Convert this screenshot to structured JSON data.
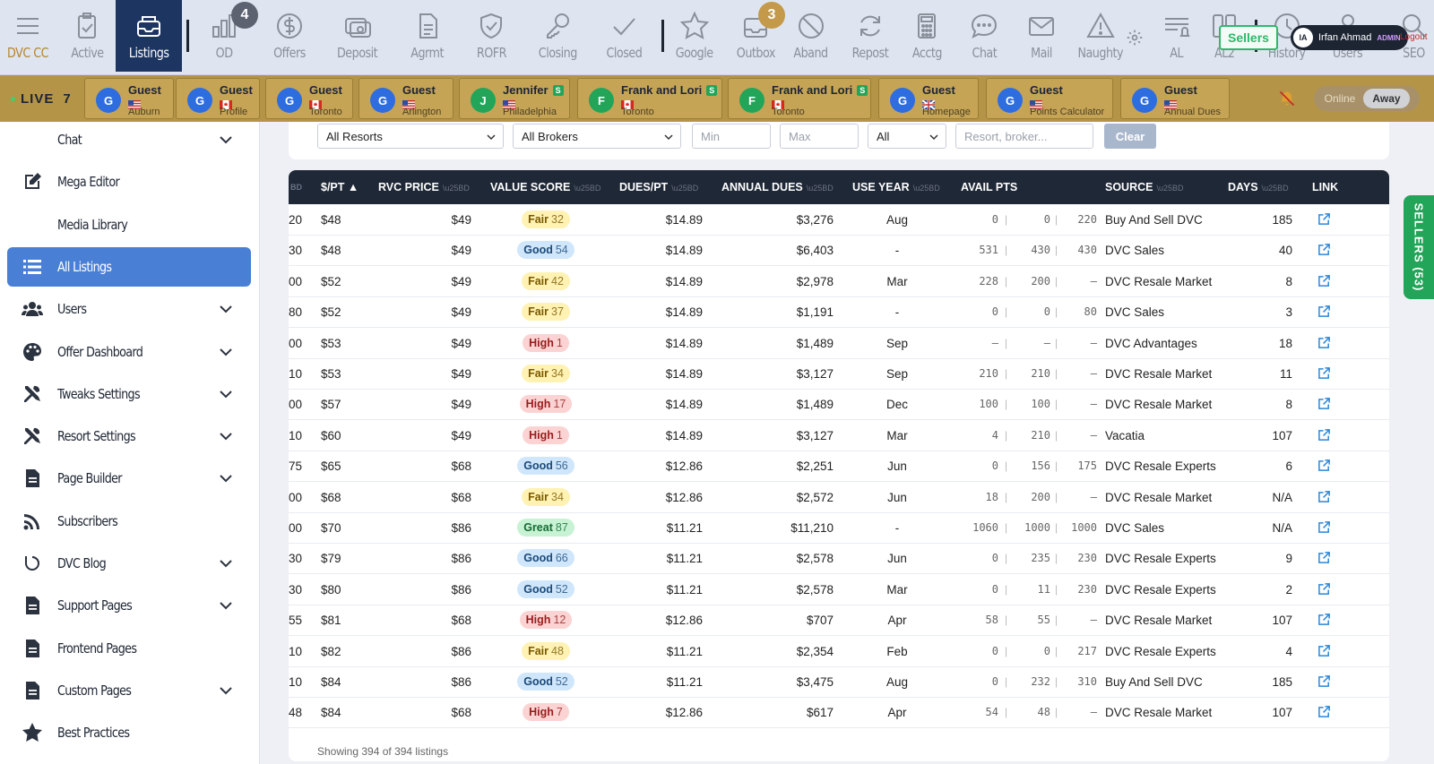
{
  "nav": {
    "items": [
      {
        "label": "DVC CC",
        "icon": "menu-icon"
      },
      {
        "label": "Active",
        "icon": "clipboard-check-icon"
      },
      {
        "label": "Listings",
        "icon": "inbox-icon"
      },
      {
        "label": "OD",
        "icon": "bar-chart-icon",
        "badge": "4"
      },
      {
        "label": "Offers",
        "icon": "dollar-icon"
      },
      {
        "label": "Deposit",
        "icon": "deposit-icon"
      },
      {
        "label": "Agrmt",
        "icon": "document-icon"
      },
      {
        "label": "ROFR",
        "icon": "shield-check-icon"
      },
      {
        "label": "Closing",
        "icon": "key-icon"
      },
      {
        "label": "Closed",
        "icon": "check-icon"
      },
      {
        "label": "Google",
        "icon": "star-icon"
      },
      {
        "label": "Outbox",
        "icon": "outbox-icon",
        "badge": "3"
      },
      {
        "label": "Aband",
        "icon": "ban-icon"
      },
      {
        "label": "Repost",
        "icon": "refresh-icon"
      },
      {
        "label": "Acctg",
        "icon": "calculator-icon"
      },
      {
        "label": "Chat",
        "icon": "chat-icon"
      },
      {
        "label": "Mail",
        "icon": "mail-icon"
      },
      {
        "label": "Naughty",
        "icon": "warning-icon"
      },
      {
        "label": "AL",
        "icon": "list-bell-icon"
      },
      {
        "label": "AL2",
        "icon": "columns-icon"
      },
      {
        "label": "History",
        "icon": "clock-icon"
      },
      {
        "label": "Users",
        "icon": "user-icon"
      },
      {
        "label": "SEO",
        "icon": "seo-icon"
      }
    ],
    "sellers_label": "Sellers",
    "user_initials": "IA",
    "user_name": "Irfan Ahmad",
    "user_role": "ADMIN",
    "logout": "Logout"
  },
  "live": {
    "label": "LIVE",
    "count": "7",
    "visitors": [
      {
        "initial": "G",
        "name": "Guest",
        "flag": "us",
        "location": "Auburn"
      },
      {
        "initial": "G",
        "name": "Guest",
        "flag": "ca",
        "location": "Profile"
      },
      {
        "initial": "G",
        "name": "Guest",
        "flag": "ca",
        "location": "Toronto"
      },
      {
        "initial": "G",
        "name": "Guest",
        "flag": "us",
        "location": "Arlington"
      },
      {
        "initial": "J",
        "name": "Jennifer",
        "badge": "S",
        "flag": "us",
        "location": "Philadelphia"
      },
      {
        "initial": "F",
        "name": "Frank and Lori",
        "badge": "S",
        "flag": "ca",
        "location": "Toronto"
      },
      {
        "initial": "F",
        "name": "Frank and Lori",
        "badge": "S",
        "flag": "ca",
        "location": "Toronto"
      },
      {
        "initial": "G",
        "name": "Guest",
        "flag": "gb",
        "location": "Homepage"
      },
      {
        "initial": "G",
        "name": "Guest",
        "flag": "us",
        "location": "Points Calculator"
      },
      {
        "initial": "G",
        "name": "Guest",
        "flag": "us",
        "location": "Annual Dues"
      }
    ],
    "status_online": "Online",
    "status_away": "Away"
  },
  "sidebar": {
    "items": [
      {
        "label": "Chat",
        "icon": "none",
        "chevron": true
      },
      {
        "label": "Mega Editor",
        "icon": "edit-icon",
        "chevron": false
      },
      {
        "label": "Media Library",
        "icon": "none",
        "chevron": false
      },
      {
        "label": "All Listings",
        "icon": "list-icon",
        "chevron": false,
        "active": true
      },
      {
        "label": "Users",
        "icon": "users-icon",
        "chevron": true
      },
      {
        "label": "Offer Dashboard",
        "icon": "palette-icon",
        "chevron": true
      },
      {
        "label": "Tweaks Settings",
        "icon": "tools-icon",
        "chevron": true
      },
      {
        "label": "Resort Settings",
        "icon": "tools-icon",
        "chevron": true
      },
      {
        "label": "Page Builder",
        "icon": "file-icon",
        "chevron": true
      },
      {
        "label": "Subscribers",
        "icon": "rss-icon",
        "chevron": false
      },
      {
        "label": "DVC Blog",
        "icon": "blog-icon",
        "chevron": true
      },
      {
        "label": "Support Pages",
        "icon": "file-icon",
        "chevron": true
      },
      {
        "label": "Frontend Pages",
        "icon": "file-icon",
        "chevron": false
      },
      {
        "label": "Custom Pages",
        "icon": "file-icon",
        "chevron": true
      },
      {
        "label": "Best Practices",
        "icon": "star-icon",
        "chevron": false
      }
    ]
  },
  "filters": {
    "resort": "All Resorts",
    "broker": "All Brokers",
    "min_placeholder": "Min",
    "max_placeholder": "Max",
    "all": "All",
    "search_placeholder": "Resort, broker...",
    "clear": "Clear"
  },
  "table": {
    "headers": {
      "cut": "BD",
      "pt": "$/PT ▲",
      "rvc": "RVC PRICE",
      "value": "VALUE SCORE",
      "duespt": "DUES/PT",
      "annual": "ANNUAL DUES",
      "useyear": "USE YEAR",
      "avail": "AVAIL PTS",
      "source": "SOURCE",
      "days": "DAYS",
      "link": "LINK"
    },
    "sort_glyph": "\\u25BD",
    "rows": [
      {
        "cut": "20",
        "pt": "$48",
        "rvc": "$49",
        "vs_label": "Fair",
        "vs_num": "32",
        "vs_kind": "fair",
        "duespt": "$14.89",
        "annual": "$3,276",
        "useyear": "Aug",
        "p1": "0",
        "p2": "0",
        "p3": "220",
        "source": "Buy And Sell DVC",
        "days": "185"
      },
      {
        "cut": "30",
        "pt": "$48",
        "rvc": "$49",
        "vs_label": "Good",
        "vs_num": "54",
        "vs_kind": "good",
        "duespt": "$14.89",
        "annual": "$6,403",
        "useyear": "-",
        "p1": "531",
        "p2": "430",
        "p3": "430",
        "source": "DVC Sales",
        "days": "40"
      },
      {
        "cut": "00",
        "pt": "$52",
        "rvc": "$49",
        "vs_label": "Fair",
        "vs_num": "42",
        "vs_kind": "fair",
        "duespt": "$14.89",
        "annual": "$2,978",
        "useyear": "Mar",
        "p1": "228",
        "p2": "200",
        "p3": "–",
        "source": "DVC Resale Market",
        "days": "8"
      },
      {
        "cut": "80",
        "pt": "$52",
        "rvc": "$49",
        "vs_label": "Fair",
        "vs_num": "37",
        "vs_kind": "fair",
        "duespt": "$14.89",
        "annual": "$1,191",
        "useyear": "-",
        "p1": "0",
        "p2": "0",
        "p3": "80",
        "source": "DVC Sales",
        "days": "3"
      },
      {
        "cut": "00",
        "pt": "$53",
        "rvc": "$49",
        "vs_label": "High",
        "vs_num": "1",
        "vs_kind": "high",
        "duespt": "$14.89",
        "annual": "$1,489",
        "useyear": "Sep",
        "p1": "–",
        "p2": "–",
        "p3": "–",
        "source": "DVC Advantages",
        "days": "18"
      },
      {
        "cut": "10",
        "pt": "$53",
        "rvc": "$49",
        "vs_label": "Fair",
        "vs_num": "34",
        "vs_kind": "fair",
        "duespt": "$14.89",
        "annual": "$3,127",
        "useyear": "Sep",
        "p1": "210",
        "p2": "210",
        "p3": "–",
        "source": "DVC Resale Market",
        "days": "11"
      },
      {
        "cut": "00",
        "pt": "$57",
        "rvc": "$49",
        "vs_label": "High",
        "vs_num": "17",
        "vs_kind": "high",
        "duespt": "$14.89",
        "annual": "$1,489",
        "useyear": "Dec",
        "p1": "100",
        "p2": "100",
        "p3": "–",
        "source": "DVC Resale Market",
        "days": "8"
      },
      {
        "cut": "10",
        "pt": "$60",
        "rvc": "$49",
        "vs_label": "High",
        "vs_num": "1",
        "vs_kind": "high",
        "duespt": "$14.89",
        "annual": "$3,127",
        "useyear": "Mar",
        "p1": "4",
        "p2": "210",
        "p3": "–",
        "source": "Vacatia",
        "days": "107"
      },
      {
        "cut": "75",
        "pt": "$65",
        "rvc": "$68",
        "vs_label": "Good",
        "vs_num": "56",
        "vs_kind": "good",
        "duespt": "$12.86",
        "annual": "$2,251",
        "useyear": "Jun",
        "p1": "0",
        "p2": "156",
        "p3": "175",
        "source": "DVC Resale Experts",
        "days": "6"
      },
      {
        "cut": "00",
        "pt": "$68",
        "rvc": "$68",
        "vs_label": "Fair",
        "vs_num": "34",
        "vs_kind": "fair",
        "duespt": "$12.86",
        "annual": "$2,572",
        "useyear": "Jun",
        "p1": "18",
        "p2": "200",
        "p3": "–",
        "source": "DVC Resale Market",
        "days": "N/A"
      },
      {
        "cut": "00",
        "pt": "$70",
        "rvc": "$86",
        "vs_label": "Great",
        "vs_num": "87",
        "vs_kind": "great",
        "duespt": "$11.21",
        "annual": "$11,210",
        "useyear": "-",
        "p1": "1060",
        "p2": "1000",
        "p3": "1000",
        "source": "DVC Sales",
        "days": "N/A"
      },
      {
        "cut": "30",
        "pt": "$79",
        "rvc": "$86",
        "vs_label": "Good",
        "vs_num": "66",
        "vs_kind": "good",
        "duespt": "$11.21",
        "annual": "$2,578",
        "useyear": "Jun",
        "p1": "0",
        "p2": "235",
        "p3": "230",
        "source": "DVC Resale Experts",
        "days": "9"
      },
      {
        "cut": "30",
        "pt": "$80",
        "rvc": "$86",
        "vs_label": "Good",
        "vs_num": "52",
        "vs_kind": "good",
        "duespt": "$11.21",
        "annual": "$2,578",
        "useyear": "Mar",
        "p1": "0",
        "p2": "11",
        "p3": "230",
        "source": "DVC Resale Experts",
        "days": "2"
      },
      {
        "cut": "55",
        "pt": "$81",
        "rvc": "$68",
        "vs_label": "High",
        "vs_num": "12",
        "vs_kind": "high",
        "duespt": "$12.86",
        "annual": "$707",
        "useyear": "Apr",
        "p1": "58",
        "p2": "55",
        "p3": "–",
        "source": "DVC Resale Market",
        "days": "107"
      },
      {
        "cut": "10",
        "pt": "$82",
        "rvc": "$86",
        "vs_label": "Fair",
        "vs_num": "48",
        "vs_kind": "fair",
        "duespt": "$11.21",
        "annual": "$2,354",
        "useyear": "Feb",
        "p1": "0",
        "p2": "0",
        "p3": "217",
        "source": "DVC Resale Experts",
        "days": "4"
      },
      {
        "cut": "10",
        "pt": "$84",
        "rvc": "$86",
        "vs_label": "Good",
        "vs_num": "52",
        "vs_kind": "good",
        "duespt": "$11.21",
        "annual": "$3,475",
        "useyear": "Aug",
        "p1": "0",
        "p2": "232",
        "p3": "310",
        "source": "Buy And Sell DVC",
        "days": "185"
      },
      {
        "cut": "48",
        "pt": "$84",
        "rvc": "$68",
        "vs_label": "High",
        "vs_num": "7",
        "vs_kind": "high",
        "duespt": "$12.86",
        "annual": "$617",
        "useyear": "Apr",
        "p1": "54",
        "p2": "48",
        "p3": "–",
        "source": "DVC Resale Market",
        "days": "107"
      }
    ],
    "footer": "Showing 394 of 394 listings"
  },
  "sellers_tab": "SELLERS (53)"
}
